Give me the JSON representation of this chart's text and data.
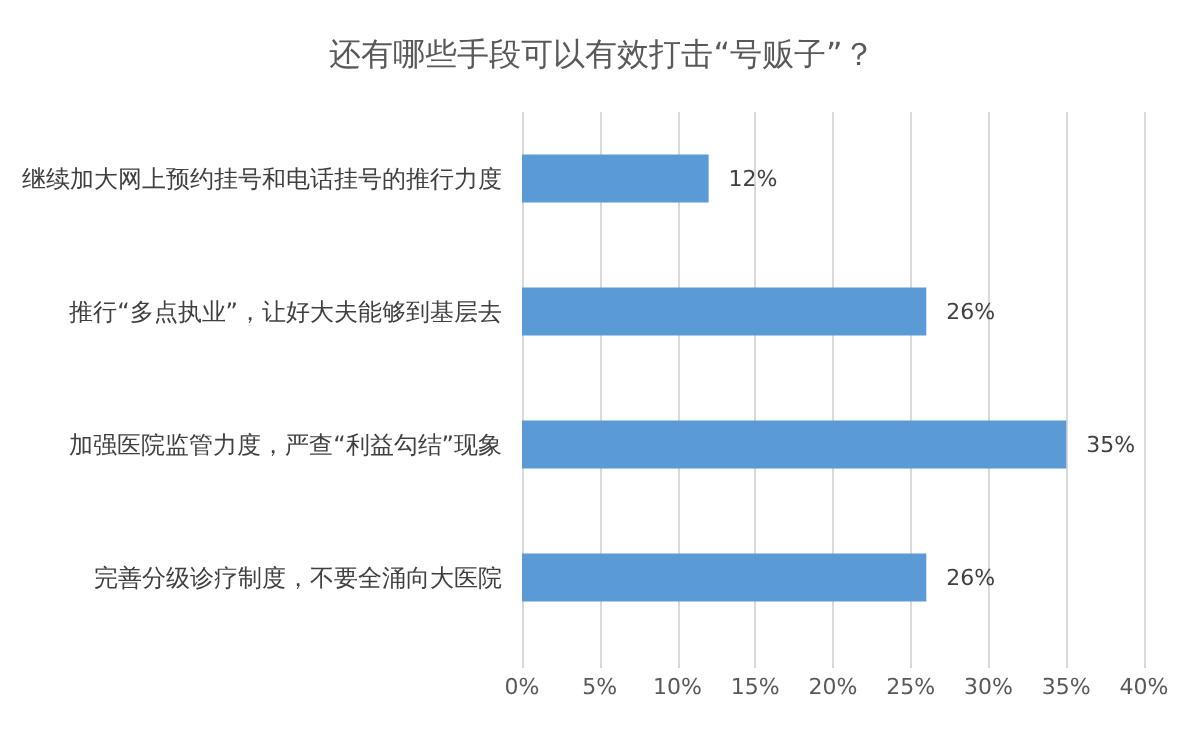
{
  "chart_data": {
    "type": "bar",
    "orientation": "horizontal",
    "title": "还有哪些手段可以有效打击“号贩子”？",
    "categories": [
      "继续加大网上预约挂号和电话挂号的推行力度",
      "推行“多点执业”，让好大夫能够到基层去",
      "加强医院监管力度，严查“利益勾结”现象",
      "完善分级诊疗制度，不要全涌向大医院"
    ],
    "values": [
      12,
      26,
      35,
      26
    ],
    "value_labels": [
      "12%",
      "26%",
      "35%",
      "26%"
    ],
    "color": "#5b9bd5",
    "xlim": [
      0,
      40
    ],
    "xticks": [
      {
        "value": 0,
        "label": "0%"
      },
      {
        "value": 5,
        "label": "5%"
      },
      {
        "value": 10,
        "label": "10%"
      },
      {
        "value": 15,
        "label": "15%"
      },
      {
        "value": 20,
        "label": "20%"
      },
      {
        "value": 25,
        "label": "25%"
      },
      {
        "value": 30,
        "label": "30%"
      },
      {
        "value": 35,
        "label": "35%"
      },
      {
        "value": 40,
        "label": "40%"
      }
    ],
    "grid": "x"
  }
}
